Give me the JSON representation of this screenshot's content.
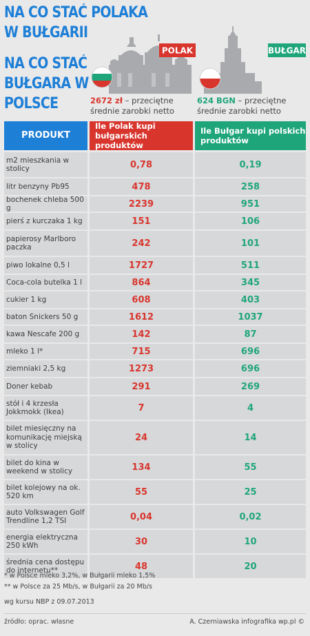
{
  "titles": {
    "line1": "NA CO STAĆ POLAKA\nW BUŁGARII",
    "line2": "NA CO STAĆ\nBUŁGARA W\nPOLSCE"
  },
  "labels": {
    "polak": "POLAK",
    "bulgar": "BUŁGAR"
  },
  "info": {
    "pl_amount": "2672 zł",
    "pl_text": " – przeciętne średnie zarobki netto",
    "bg_amount": "624 BGN",
    "bg_text": " – przeciętne średnie zarobki netto"
  },
  "colors": {
    "blue": "#1e7fd6",
    "red": "#d8352d",
    "green": "#1fa57a"
  },
  "chart_data": {
    "type": "table",
    "columns": [
      "PRODUKT",
      "Ile Polak kupi bułgarskich produktów",
      "Ile Bułgar kupi polskich produktów"
    ],
    "rows": [
      {
        "product": "m2 mieszkania w stolicy",
        "pl": "0,78",
        "bg": "0,19"
      },
      {
        "product": "litr benzyny Pb95",
        "pl": "478",
        "bg": "258"
      },
      {
        "product": "bochenek chleba 500 g",
        "pl": "2239",
        "bg": "951"
      },
      {
        "product": "pierś z kurczaka 1 kg",
        "pl": "151",
        "bg": "106"
      },
      {
        "product": "papierosy Marlboro paczka",
        "pl": "242",
        "bg": "101"
      },
      {
        "product": "piwo lokalne 0,5 l",
        "pl": "1727",
        "bg": "511"
      },
      {
        "product": "Coca-cola butelka 1 l",
        "pl": "864",
        "bg": "345"
      },
      {
        "product": "cukier 1 kg",
        "pl": "608",
        "bg": "403"
      },
      {
        "product": "baton Snickers 50 g",
        "pl": "1612",
        "bg": "1037"
      },
      {
        "product": "kawa Nescafe 200 g",
        "pl": "142",
        "bg": "87"
      },
      {
        "product": "mleko 1 l*",
        "pl": "715",
        "bg": "696"
      },
      {
        "product": "ziemniaki 2,5 kg",
        "pl": "1273",
        "bg": "696"
      },
      {
        "product": "Doner kebab",
        "pl": "291",
        "bg": "269"
      },
      {
        "product": "stół i 4 krzesła Jokkmokk (Ikea)",
        "pl": "7",
        "bg": "4"
      },
      {
        "product": "bilet miesięczny na komunikację miejską w stolicy",
        "pl": "24",
        "bg": "14"
      },
      {
        "product": "bilet do kina w weekend w stolicy",
        "pl": "134",
        "bg": "55"
      },
      {
        "product": "bilet kolejowy na ok. 520 km",
        "pl": "55",
        "bg": "25"
      },
      {
        "product": "auto Volkswagen Golf Trendline 1,2 TSI",
        "pl": "0,04",
        "bg": "0,02"
      },
      {
        "product": "energia elektryczna 250 kWh",
        "pl": "30",
        "bg": "10"
      },
      {
        "product": "średnia cena dostępu do internetu**",
        "pl": "48",
        "bg": "20"
      }
    ]
  },
  "footer": {
    "note1": "* w Polsce mleko 3,2%, w Bułgarii mleko 1,5%",
    "note2": "** w Polsce za 25 Mb/s, w Bułgarii za 20 Mb/s",
    "rate": "wg kursu NBP z 09.07.2013",
    "source": "źródło: oprac. własne",
    "credit": "A. Czerniawska infografika wp.pl ©"
  }
}
